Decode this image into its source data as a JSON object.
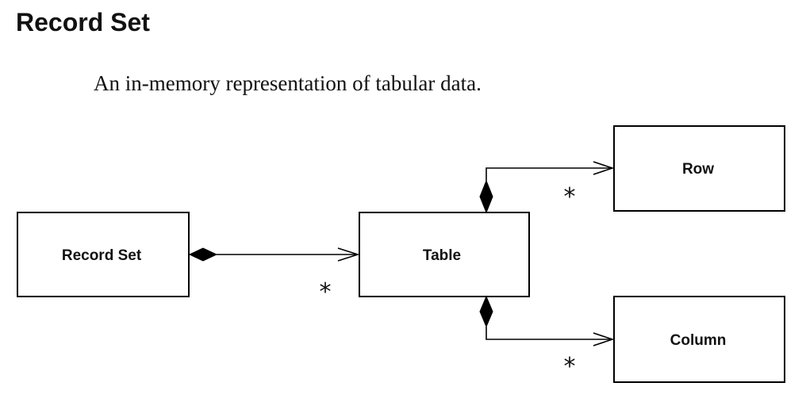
{
  "title": "Record Set",
  "description": "An in-memory representation of tabular data.",
  "diagram": {
    "classes": {
      "record_set": "Record Set",
      "table": "Table",
      "row": "Row",
      "column": "Column"
    },
    "associations": [
      {
        "from": "Record Set",
        "to": "Table",
        "kind": "composition",
        "multiplicity": "*"
      },
      {
        "from": "Table",
        "to": "Row",
        "kind": "composition",
        "multiplicity": "*"
      },
      {
        "from": "Table",
        "to": "Column",
        "kind": "composition",
        "multiplicity": "*"
      }
    ]
  }
}
